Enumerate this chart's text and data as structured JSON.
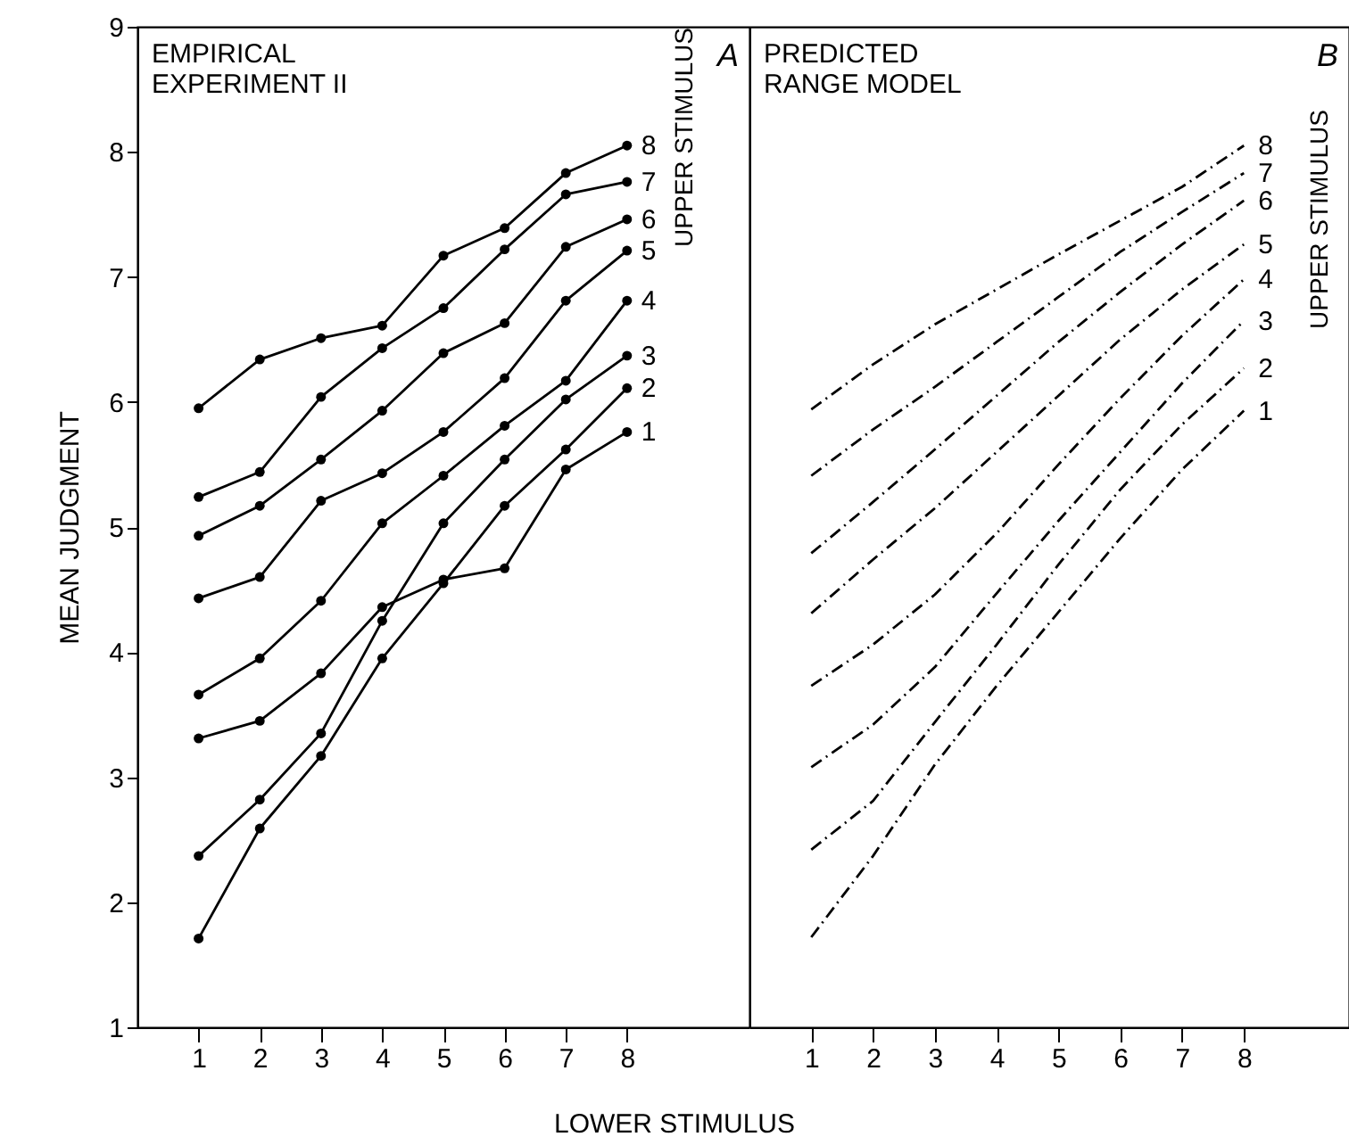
{
  "chart_data": [
    {
      "type": "line",
      "title": "EMPIRICAL\nEXPERIMENT II",
      "xlabel": "LOWER STIMULUS",
      "ylabel": "MEAN JUDGMENT",
      "legend_title": "UPPER STIMULUS",
      "annotations": [
        "A"
      ],
      "marker": "circle",
      "line_style": "solid",
      "x": [
        1,
        2,
        3,
        4,
        5,
        6,
        7,
        8
      ],
      "xlim": [
        0,
        10
      ],
      "xticks": [
        1,
        2,
        3,
        4,
        5,
        6,
        7,
        8
      ],
      "ylim": [
        1,
        9
      ],
      "yticks": [
        1,
        2,
        3,
        4,
        5,
        6,
        7,
        8,
        9
      ],
      "series": [
        {
          "name": "8",
          "color": "#000000",
          "values": [
            5.95,
            6.34,
            6.51,
            6.61,
            7.17,
            7.39,
            7.83,
            8.05
          ]
        },
        {
          "name": "7",
          "color": "#000000",
          "values": [
            5.24,
            5.44,
            6.04,
            6.43,
            6.75,
            7.22,
            7.66,
            7.76
          ]
        },
        {
          "name": "6",
          "color": "#000000",
          "values": [
            4.93,
            5.17,
            5.54,
            5.93,
            6.39,
            6.63,
            7.24,
            7.46
          ]
        },
        {
          "name": "5",
          "color": "#000000",
          "values": [
            4.43,
            4.6,
            5.21,
            5.43,
            5.76,
            6.19,
            6.81,
            7.21
          ]
        },
        {
          "name": "4",
          "color": "#000000",
          "values": [
            3.66,
            3.95,
            4.41,
            5.03,
            5.41,
            5.81,
            6.17,
            6.81
          ]
        },
        {
          "name": "3",
          "color": "#000000",
          "values": [
            2.37,
            2.82,
            3.35,
            4.25,
            5.03,
            5.54,
            6.02,
            6.37
          ]
        },
        {
          "name": "2",
          "color": "#000000",
          "values": [
            1.71,
            2.59,
            3.17,
            3.95,
            4.55,
            5.17,
            5.62,
            6.11
          ]
        },
        {
          "name": "1",
          "color": "#000000",
          "values": [
            3.31,
            3.45,
            3.83,
            4.36,
            4.58,
            4.67,
            5.46,
            5.76
          ]
        }
      ]
    },
    {
      "type": "line",
      "title": "PREDICTED\nRANGE MODEL",
      "legend_title": "UPPER STIMULUS",
      "annotations": [
        "B"
      ],
      "marker": "none",
      "line_style": "dashed",
      "tick_labels": "x",
      "x": [
        1,
        2,
        3,
        4,
        5,
        6,
        7,
        8
      ],
      "xlim": [
        0,
        9.7
      ],
      "xticks": [
        1,
        2,
        3,
        4,
        5,
        6,
        7,
        8
      ],
      "ylim": [
        1,
        9
      ],
      "yticks": [
        1,
        2,
        3,
        4,
        5,
        6,
        7,
        8,
        9
      ],
      "series": [
        {
          "name": "8",
          "color": "#000000",
          "values": [
            5.94,
            6.3,
            6.62,
            6.9,
            7.18,
            7.45,
            7.72,
            8.05
          ]
        },
        {
          "name": "7",
          "color": "#000000",
          "values": [
            5.41,
            5.78,
            6.12,
            6.48,
            6.84,
            7.2,
            7.52,
            7.83
          ]
        },
        {
          "name": "6",
          "color": "#000000",
          "values": [
            4.79,
            5.2,
            5.62,
            6.05,
            6.48,
            6.88,
            7.26,
            7.61
          ]
        },
        {
          "name": "5",
          "color": "#000000",
          "values": [
            4.31,
            4.74,
            5.15,
            5.6,
            6.05,
            6.5,
            6.9,
            7.26
          ]
        },
        {
          "name": "4",
          "color": "#000000",
          "values": [
            3.73,
            4.06,
            4.46,
            4.95,
            5.5,
            6.03,
            6.53,
            6.98
          ]
        },
        {
          "name": "3",
          "color": "#000000",
          "values": [
            3.08,
            3.42,
            3.88,
            4.47,
            5.05,
            5.6,
            6.15,
            6.65
          ]
        },
        {
          "name": "2",
          "color": "#000000",
          "values": [
            2.42,
            2.81,
            3.44,
            4.06,
            4.7,
            5.3,
            5.82,
            6.27
          ]
        },
        {
          "name": "1",
          "color": "#000000",
          "values": [
            1.72,
            2.37,
            3.1,
            3.73,
            4.32,
            4.91,
            5.46,
            5.93
          ]
        }
      ]
    }
  ]
}
